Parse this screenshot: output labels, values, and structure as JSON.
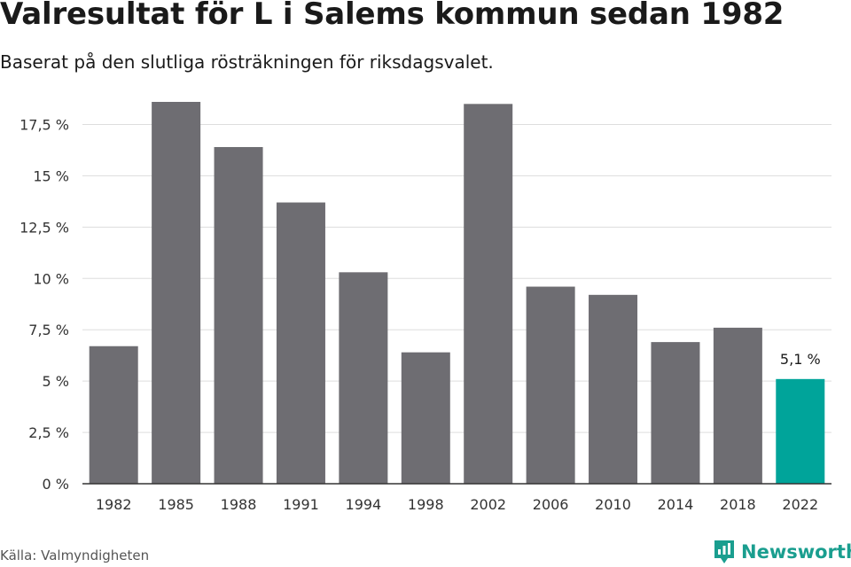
{
  "header": {
    "title": "Valresultat för L i Salems kommun sedan 1982",
    "subtitle": "Baserat på den slutliga rösträkningen för riksdagsvalet."
  },
  "footer": {
    "source": "Källa: Valmyndigheten",
    "brand": "Newsworthy",
    "brand_icon": "newsworthy-logo-icon"
  },
  "colors": {
    "bar": "#6e6d72",
    "highlight": "#00a49a",
    "grid": "#dddddd",
    "axis": "#333333",
    "brand": "#1a9e8f"
  },
  "chart_data": {
    "type": "bar",
    "categories": [
      "1982",
      "1985",
      "1988",
      "1991",
      "1994",
      "1998",
      "2002",
      "2006",
      "2010",
      "2014",
      "2018",
      "2022"
    ],
    "values": [
      6.7,
      18.6,
      16.4,
      13.7,
      10.3,
      6.4,
      18.5,
      9.6,
      9.2,
      6.9,
      7.6,
      5.1
    ],
    "highlight_index": 11,
    "highlight_label": "5,1 %",
    "ylim": [
      0,
      18.6
    ],
    "yticks": [
      0,
      2.5,
      5,
      7.5,
      10,
      12.5,
      15,
      17.5
    ],
    "ytick_labels": [
      "0 %",
      "2,5 %",
      "5 %",
      "7,5 %",
      "10 %",
      "12,5 %",
      "15 %",
      "17,5 %"
    ],
    "grid": true,
    "legend": "none"
  }
}
